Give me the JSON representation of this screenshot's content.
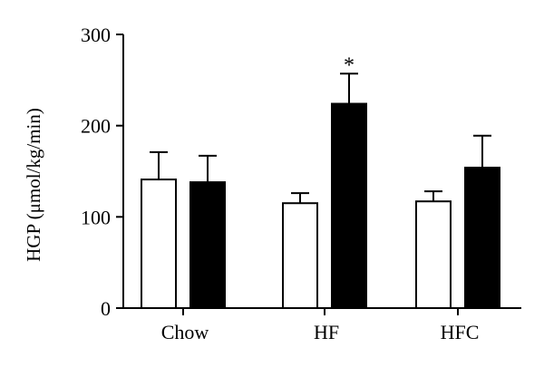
{
  "chart_data": {
    "type": "bar",
    "title": "",
    "xlabel": "",
    "ylabel": "HGP (μmol/kg/min)",
    "ylim": [
      0,
      300
    ],
    "yticks": [
      0,
      100,
      200,
      300
    ],
    "categories": [
      "Chow",
      "HF",
      "HFC"
    ],
    "series": [
      {
        "values": [
          141,
          115,
          117
        ],
        "errors": [
          30,
          11,
          11
        ],
        "fill": "#ffffff"
      },
      {
        "values": [
          138,
          224,
          154
        ],
        "errors": [
          29,
          33,
          35
        ],
        "fill": "#000000"
      }
    ],
    "annotations": [
      {
        "category": "HF",
        "series_index": 1,
        "text": "*"
      }
    ],
    "grid": false,
    "legend": "none"
  }
}
